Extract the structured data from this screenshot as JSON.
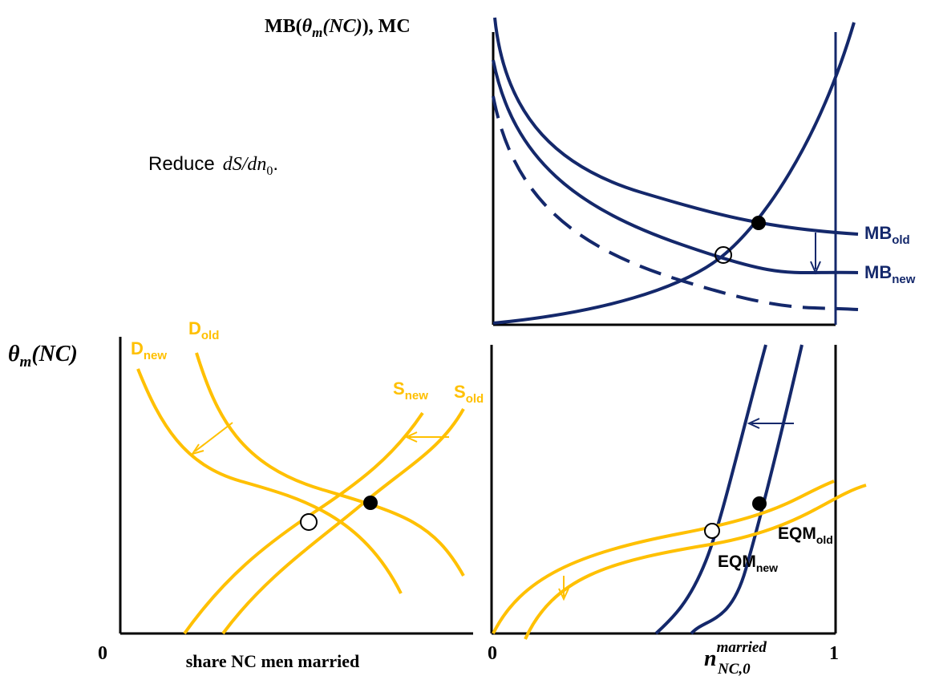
{
  "top_panel": {
    "axis_label": {
      "open": "MB(",
      "theta": "θ",
      "theta_sub": "m",
      "arg": "(NC)",
      "close": "), MC"
    },
    "labels": [
      {
        "main": "MB",
        "sub": "old"
      },
      {
        "main": "MB",
        "sub": "new"
      }
    ]
  },
  "note": {
    "text": "Reduce",
    "math": "dS/dn",
    "math_sub": "0",
    "end": "."
  },
  "left_panel": {
    "y_label": {
      "theta": "θ",
      "sub": "m",
      "arg": "(NC)"
    },
    "origin": "0",
    "x_label": "share NC men married",
    "curve_labels": [
      {
        "main": "D",
        "sub": "new"
      },
      {
        "main": "D",
        "sub": "old"
      },
      {
        "main": "S",
        "sub": "new"
      },
      {
        "main": "S",
        "sub": "old"
      }
    ]
  },
  "right_panel": {
    "origin": "0",
    "end": "1",
    "x_label": {
      "main": "n",
      "sup": "married",
      "sub": "NC,0"
    },
    "labels": [
      {
        "main": "EQM",
        "sub": "old"
      },
      {
        "main": "EQM",
        "sub": "new"
      }
    ]
  }
}
